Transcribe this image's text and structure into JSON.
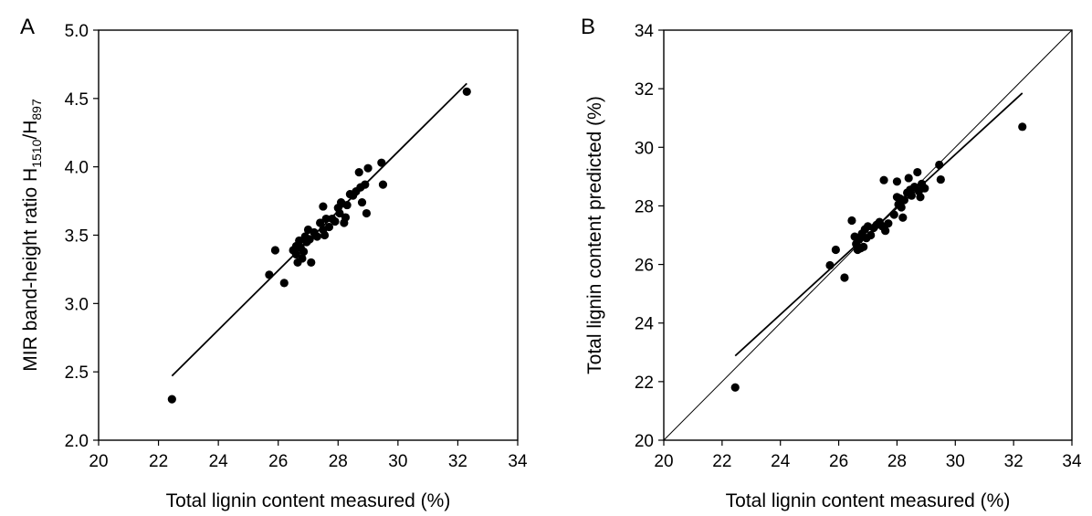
{
  "chart_data": [
    {
      "type": "scatter",
      "panel_label": "A",
      "xlabel": "Total lignin content measured (%)",
      "ylabel": {
        "main": "MIR band-height ratio H",
        "sub1": "1510",
        "mid": "/H",
        "sub2": "897"
      },
      "xlim": [
        20,
        34
      ],
      "ylim": [
        2.0,
        5.0
      ],
      "xticks": [
        20,
        22,
        24,
        26,
        28,
        30,
        32,
        34
      ],
      "yticks": [
        2.0,
        2.5,
        3.0,
        3.5,
        4.0,
        4.5,
        5.0
      ],
      "xtick_labels": [
        "20",
        "22",
        "24",
        "26",
        "28",
        "30",
        "32",
        "34"
      ],
      "ytick_labels": [
        "2.0",
        "2.5",
        "3.0",
        "3.5",
        "4.0",
        "4.5",
        "5.0"
      ],
      "grid": false,
      "points": [
        [
          22.45,
          2.3
        ],
        [
          25.7,
          3.21
        ],
        [
          25.9,
          3.39
        ],
        [
          26.2,
          3.15
        ],
        [
          26.5,
          3.39
        ],
        [
          26.6,
          3.42
        ],
        [
          26.6,
          3.36
        ],
        [
          26.65,
          3.3
        ],
        [
          26.7,
          3.46
        ],
        [
          26.75,
          3.41
        ],
        [
          26.8,
          3.33
        ],
        [
          26.85,
          3.38
        ],
        [
          26.9,
          3.49
        ],
        [
          26.95,
          3.45
        ],
        [
          27.0,
          3.54
        ],
        [
          27.05,
          3.47
        ],
        [
          27.1,
          3.3
        ],
        [
          27.2,
          3.52
        ],
        [
          27.3,
          3.49
        ],
        [
          27.4,
          3.59
        ],
        [
          27.5,
          3.54
        ],
        [
          27.5,
          3.71
        ],
        [
          27.55,
          3.5
        ],
        [
          27.6,
          3.62
        ],
        [
          27.7,
          3.56
        ],
        [
          27.8,
          3.62
        ],
        [
          27.9,
          3.6
        ],
        [
          28.0,
          3.7
        ],
        [
          28.05,
          3.66
        ],
        [
          28.1,
          3.74
        ],
        [
          28.2,
          3.59
        ],
        [
          28.25,
          3.63
        ],
        [
          28.3,
          3.72
        ],
        [
          28.4,
          3.8
        ],
        [
          28.5,
          3.79
        ],
        [
          28.6,
          3.82
        ],
        [
          28.7,
          3.96
        ],
        [
          28.75,
          3.85
        ],
        [
          28.8,
          3.74
        ],
        [
          28.9,
          3.87
        ],
        [
          28.95,
          3.66
        ],
        [
          29.0,
          3.99
        ],
        [
          29.45,
          4.03
        ],
        [
          29.5,
          3.87
        ],
        [
          32.3,
          4.55
        ]
      ],
      "lines": [
        {
          "kind": "regression",
          "x": [
            22.45,
            32.3
          ],
          "y": [
            2.47,
            4.61
          ]
        }
      ]
    },
    {
      "type": "scatter",
      "panel_label": "B",
      "xlabel": "Total lignin content measured (%)",
      "ylabel": "Total lignin content predicted (%)",
      "xlim": [
        20,
        34
      ],
      "ylim": [
        20,
        34
      ],
      "xticks": [
        20,
        22,
        24,
        26,
        28,
        30,
        32,
        34
      ],
      "yticks": [
        20,
        22,
        24,
        26,
        28,
        30,
        32,
        34
      ],
      "xtick_labels": [
        "20",
        "22",
        "24",
        "26",
        "28",
        "30",
        "32",
        "34"
      ],
      "ytick_labels": [
        "20",
        "22",
        "24",
        "26",
        "28",
        "30",
        "32",
        "34"
      ],
      "grid": false,
      "points": [
        [
          22.45,
          21.8
        ],
        [
          25.7,
          25.97
        ],
        [
          25.9,
          26.5
        ],
        [
          26.2,
          25.55
        ],
        [
          26.45,
          27.5
        ],
        [
          26.55,
          26.95
        ],
        [
          26.6,
          26.7
        ],
        [
          26.65,
          26.5
        ],
        [
          26.7,
          26.85
        ],
        [
          26.75,
          26.55
        ],
        [
          26.8,
          27.05
        ],
        [
          26.85,
          26.6
        ],
        [
          26.9,
          27.2
        ],
        [
          26.95,
          26.9
        ],
        [
          27.0,
          27.3
        ],
        [
          27.1,
          27.0
        ],
        [
          27.2,
          27.25
        ],
        [
          27.3,
          27.35
        ],
        [
          27.4,
          27.45
        ],
        [
          27.5,
          27.3
        ],
        [
          27.55,
          28.88
        ],
        [
          27.6,
          27.15
        ],
        [
          27.7,
          27.4
        ],
        [
          27.9,
          27.7
        ],
        [
          28.0,
          28.3
        ],
        [
          28.0,
          28.83
        ],
        [
          28.05,
          28.05
        ],
        [
          28.1,
          28.25
        ],
        [
          28.15,
          27.95
        ],
        [
          28.2,
          27.6
        ],
        [
          28.25,
          28.2
        ],
        [
          28.35,
          28.45
        ],
        [
          28.4,
          28.95
        ],
        [
          28.45,
          28.55
        ],
        [
          28.5,
          28.35
        ],
        [
          28.6,
          28.65
        ],
        [
          28.7,
          29.15
        ],
        [
          28.75,
          28.5
        ],
        [
          28.8,
          28.3
        ],
        [
          28.85,
          28.75
        ],
        [
          28.95,
          28.6
        ],
        [
          29.45,
          29.4
        ],
        [
          29.5,
          28.9
        ],
        [
          32.3,
          30.7
        ]
      ],
      "lines": [
        {
          "kind": "identity",
          "x": [
            20,
            34
          ],
          "y": [
            20,
            34
          ]
        },
        {
          "kind": "regression",
          "x": [
            22.45,
            32.3
          ],
          "y": [
            22.88,
            31.85
          ]
        }
      ]
    }
  ]
}
